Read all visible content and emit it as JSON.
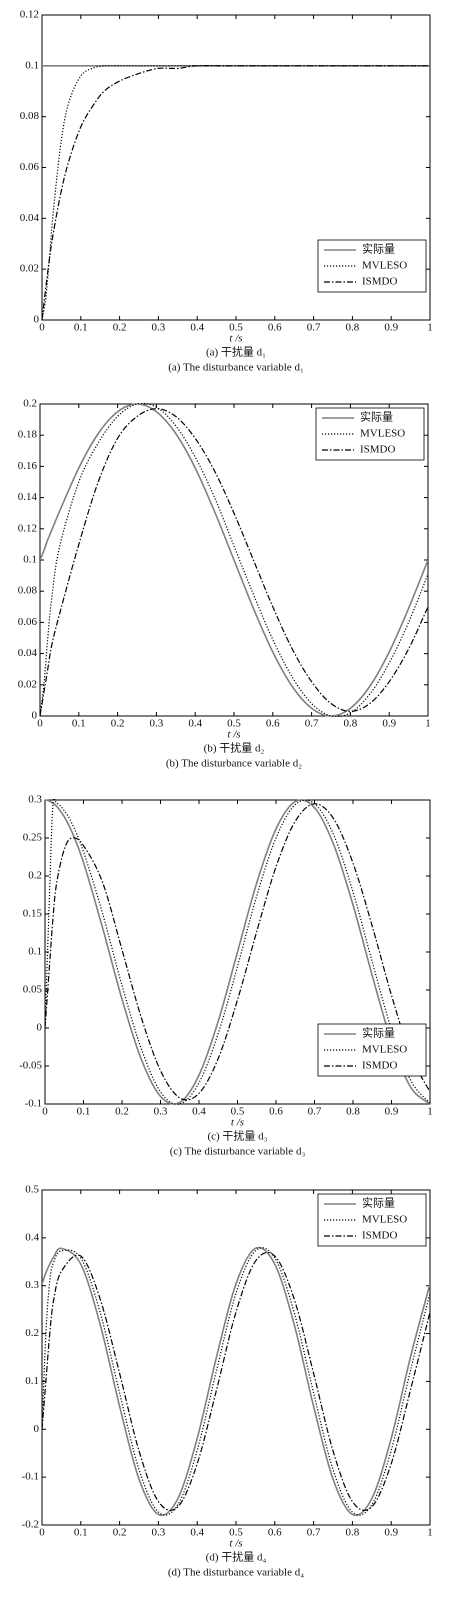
{
  "chart_data": [
    {
      "type": "line",
      "xlabel": "t /s",
      "caption": [
        "(a) 干扰量 d₁",
        "(a) The disturbance variable d₁"
      ],
      "legend": "lower right",
      "xlim": [
        0,
        1
      ],
      "xticks": [
        0,
        0.1,
        0.2,
        0.3,
        0.4,
        0.5,
        0.6,
        0.7,
        0.8,
        0.9,
        1
      ],
      "ylim": [
        0,
        0.12
      ],
      "yticks": [
        0,
        0.02,
        0.04,
        0.06,
        0.08,
        0.1,
        0.12
      ],
      "x": [
        0,
        0.01,
        0.02,
        0.03,
        0.05,
        0.07,
        0.1,
        0.13,
        0.16,
        0.2,
        0.25,
        0.3,
        0.35,
        0.4,
        0.5,
        0.6,
        0.7,
        0.8,
        0.9,
        1
      ],
      "series": [
        {
          "name": "实际量",
          "color": "#808080",
          "style": "solid",
          "values": [
            0.1,
            0.1,
            0.1,
            0.1,
            0.1,
            0.1,
            0.1,
            0.1,
            0.1,
            0.1,
            0.1,
            0.1,
            0.1,
            0.1,
            0.1,
            0.1,
            0.1,
            0.1,
            0.1,
            0.1
          ]
        },
        {
          "name": "MVLESO",
          "color": "#000000",
          "style": "dotted",
          "values": [
            0,
            0.009,
            0.026,
            0.044,
            0.071,
            0.086,
            0.096,
            0.099,
            0.1,
            0.1,
            0.1,
            0.1,
            0.1,
            0.1,
            0.1,
            0.1,
            0.1,
            0.1,
            0.1,
            0.1
          ]
        },
        {
          "name": "ISMDO",
          "color": "#000000",
          "style": "dashdot",
          "values": [
            0,
            0.013,
            0.025,
            0.035,
            0.051,
            0.063,
            0.076,
            0.084,
            0.09,
            0.094,
            0.097,
            0.099,
            0.099,
            0.1,
            0.1,
            0.1,
            0.1,
            0.1,
            0.1,
            0.1
          ]
        }
      ]
    },
    {
      "type": "line",
      "xlabel": "t /s",
      "caption": [
        "(b) 干扰量 d₂",
        "(b) The disturbance variable d₂"
      ],
      "legend": "upper right",
      "xlim": [
        0,
        1
      ],
      "xticks": [
        0,
        0.1,
        0.2,
        0.3,
        0.4,
        0.5,
        0.6,
        0.7,
        0.8,
        0.9,
        1
      ],
      "ylim": [
        0,
        0.2
      ],
      "yticks": [
        0,
        0.02,
        0.04,
        0.06,
        0.08,
        0.1,
        0.12,
        0.14,
        0.16,
        0.18,
        0.2
      ],
      "x": [
        0,
        0.01,
        0.02,
        0.03,
        0.05,
        0.1,
        0.15,
        0.2,
        0.25,
        0.3,
        0.35,
        0.4,
        0.45,
        0.5,
        0.55,
        0.6,
        0.65,
        0.7,
        0.75,
        0.8,
        0.85,
        0.9,
        0.95,
        1
      ],
      "series": [
        {
          "name": "实际量",
          "color": "#808080",
          "style": "solid",
          "values": [
            0.1,
            0.106,
            0.113,
            0.119,
            0.131,
            0.159,
            0.181,
            0.195,
            0.2,
            0.195,
            0.181,
            0.159,
            0.131,
            0.1,
            0.069,
            0.041,
            0.019,
            0.005,
            0,
            0.005,
            0.019,
            0.041,
            0.069,
            0.1
          ]
        },
        {
          "name": "MVLESO",
          "color": "#000000",
          "style": "dotted",
          "values": [
            0,
            0.02,
            0.05,
            0.075,
            0.108,
            0.15,
            0.175,
            0.192,
            0.2,
            0.198,
            0.186,
            0.166,
            0.14,
            0.109,
            0.078,
            0.049,
            0.025,
            0.008,
            0,
            0.002,
            0.014,
            0.034,
            0.06,
            0.091
          ]
        },
        {
          "name": "ISMDO",
          "color": "#000000",
          "style": "dashdot",
          "values": [
            0,
            0.015,
            0.03,
            0.045,
            0.065,
            0.11,
            0.15,
            0.178,
            0.192,
            0.197,
            0.192,
            0.178,
            0.157,
            0.13,
            0.1,
            0.07,
            0.043,
            0.022,
            0.008,
            0.003,
            0.008,
            0.022,
            0.043,
            0.07
          ]
        }
      ]
    },
    {
      "type": "line",
      "xlabel": "t /s",
      "caption": [
        "(c) 干扰量 d₃",
        "(c) The disturbance variable d₃"
      ],
      "legend": "lower right",
      "xlim": [
        0,
        1
      ],
      "xticks": [
        0,
        0.1,
        0.2,
        0.3,
        0.4,
        0.5,
        0.6,
        0.7,
        0.8,
        0.9,
        1
      ],
      "ylim": [
        -0.1,
        0.3
      ],
      "yticks": [
        -0.1,
        -0.05,
        0,
        0.05,
        0.1,
        0.15,
        0.2,
        0.25,
        0.3
      ],
      "x": [
        0,
        0.01,
        0.02,
        0.03,
        0.05,
        0.07,
        0.1,
        0.15,
        0.2,
        0.25,
        0.3,
        0.35,
        0.4,
        0.45,
        0.5,
        0.55,
        0.6,
        0.65,
        0.7,
        0.75,
        0.8,
        0.85,
        0.9,
        0.95,
        1
      ],
      "series": [
        {
          "name": "实际量",
          "color": "#808080",
          "style": "solid",
          "values": [
            0.3,
            0.299,
            0.296,
            0.292,
            0.278,
            0.258,
            0.218,
            0.131,
            0.038,
            -0.041,
            -0.09,
            -0.098,
            -0.062,
            0.009,
            0.1,
            0.191,
            0.262,
            0.298,
            0.29,
            0.241,
            0.162,
            0.069,
            -0.018,
            -0.078,
            -0.1
          ]
        },
        {
          "name": "MVLESO",
          "color": "#000000",
          "style": "dotted",
          "values": [
            0,
            0.15,
            0.29,
            0.296,
            0.286,
            0.269,
            0.232,
            0.15,
            0.056,
            -0.027,
            -0.084,
            -0.1,
            -0.072,
            -0.007,
            0.081,
            0.174,
            0.25,
            0.294,
            0.295,
            0.254,
            0.179,
            0.087,
            -0.002,
            -0.069,
            -0.099
          ]
        },
        {
          "name": "ISMDO",
          "color": "#000000",
          "style": "dashdot",
          "values": [
            0,
            0.07,
            0.14,
            0.19,
            0.235,
            0.25,
            0.24,
            0.191,
            0.103,
            0.014,
            -0.056,
            -0.092,
            -0.086,
            -0.04,
            0.037,
            0.127,
            0.212,
            0.272,
            0.295,
            0.275,
            0.217,
            0.134,
            0.043,
            -0.036,
            -0.084
          ]
        }
      ]
    },
    {
      "type": "line",
      "xlabel": "t /s",
      "caption": [
        "(d) 干扰量 d₄",
        "(d) The disturbance variable d₄"
      ],
      "legend": "upper right",
      "xlim": [
        0,
        1
      ],
      "xticks": [
        0,
        0.1,
        0.2,
        0.3,
        0.4,
        0.5,
        0.6,
        0.7,
        0.8,
        0.9,
        1
      ],
      "ylim": [
        -0.2,
        0.5
      ],
      "yticks": [
        -0.2,
        -0.1,
        0,
        0.1,
        0.2,
        0.3,
        0.4,
        0.5
      ],
      "x": [
        0,
        0.01,
        0.02,
        0.03,
        0.05,
        0.1,
        0.15,
        0.2,
        0.25,
        0.3,
        0.35,
        0.4,
        0.45,
        0.5,
        0.55,
        0.6,
        0.65,
        0.7,
        0.75,
        0.8,
        0.85,
        0.9,
        0.95,
        1
      ],
      "series": [
        {
          "name": "实际量",
          "color": "#808080",
          "style": "solid",
          "values": [
            0.304,
            0.327,
            0.345,
            0.36,
            0.378,
            0.345,
            0.219,
            0.048,
            -0.104,
            -0.178,
            -0.145,
            -0.019,
            0.152,
            0.304,
            0.378,
            0.345,
            0.219,
            0.048,
            -0.104,
            -0.178,
            -0.145,
            -0.019,
            0.152,
            0.304
          ]
        },
        {
          "name": "MVLESO",
          "color": "#000000",
          "style": "dotted",
          "values": [
            0,
            0.2,
            0.31,
            0.349,
            0.373,
            0.358,
            0.244,
            0.076,
            -0.084,
            -0.173,
            -0.158,
            -0.044,
            0.124,
            0.284,
            0.373,
            0.358,
            0.244,
            0.076,
            -0.084,
            -0.173,
            -0.158,
            -0.044,
            0.124,
            0.284
          ]
        },
        {
          "name": "ISMDO",
          "color": "#000000",
          "style": "dashdot",
          "values": [
            0,
            0.1,
            0.2,
            0.27,
            0.33,
            0.362,
            0.272,
            0.117,
            -0.045,
            -0.151,
            -0.162,
            -0.072,
            0.083,
            0.245,
            0.351,
            0.362,
            0.272,
            0.117,
            -0.045,
            -0.151,
            -0.162,
            -0.072,
            0.083,
            0.245
          ]
        }
      ]
    }
  ]
}
